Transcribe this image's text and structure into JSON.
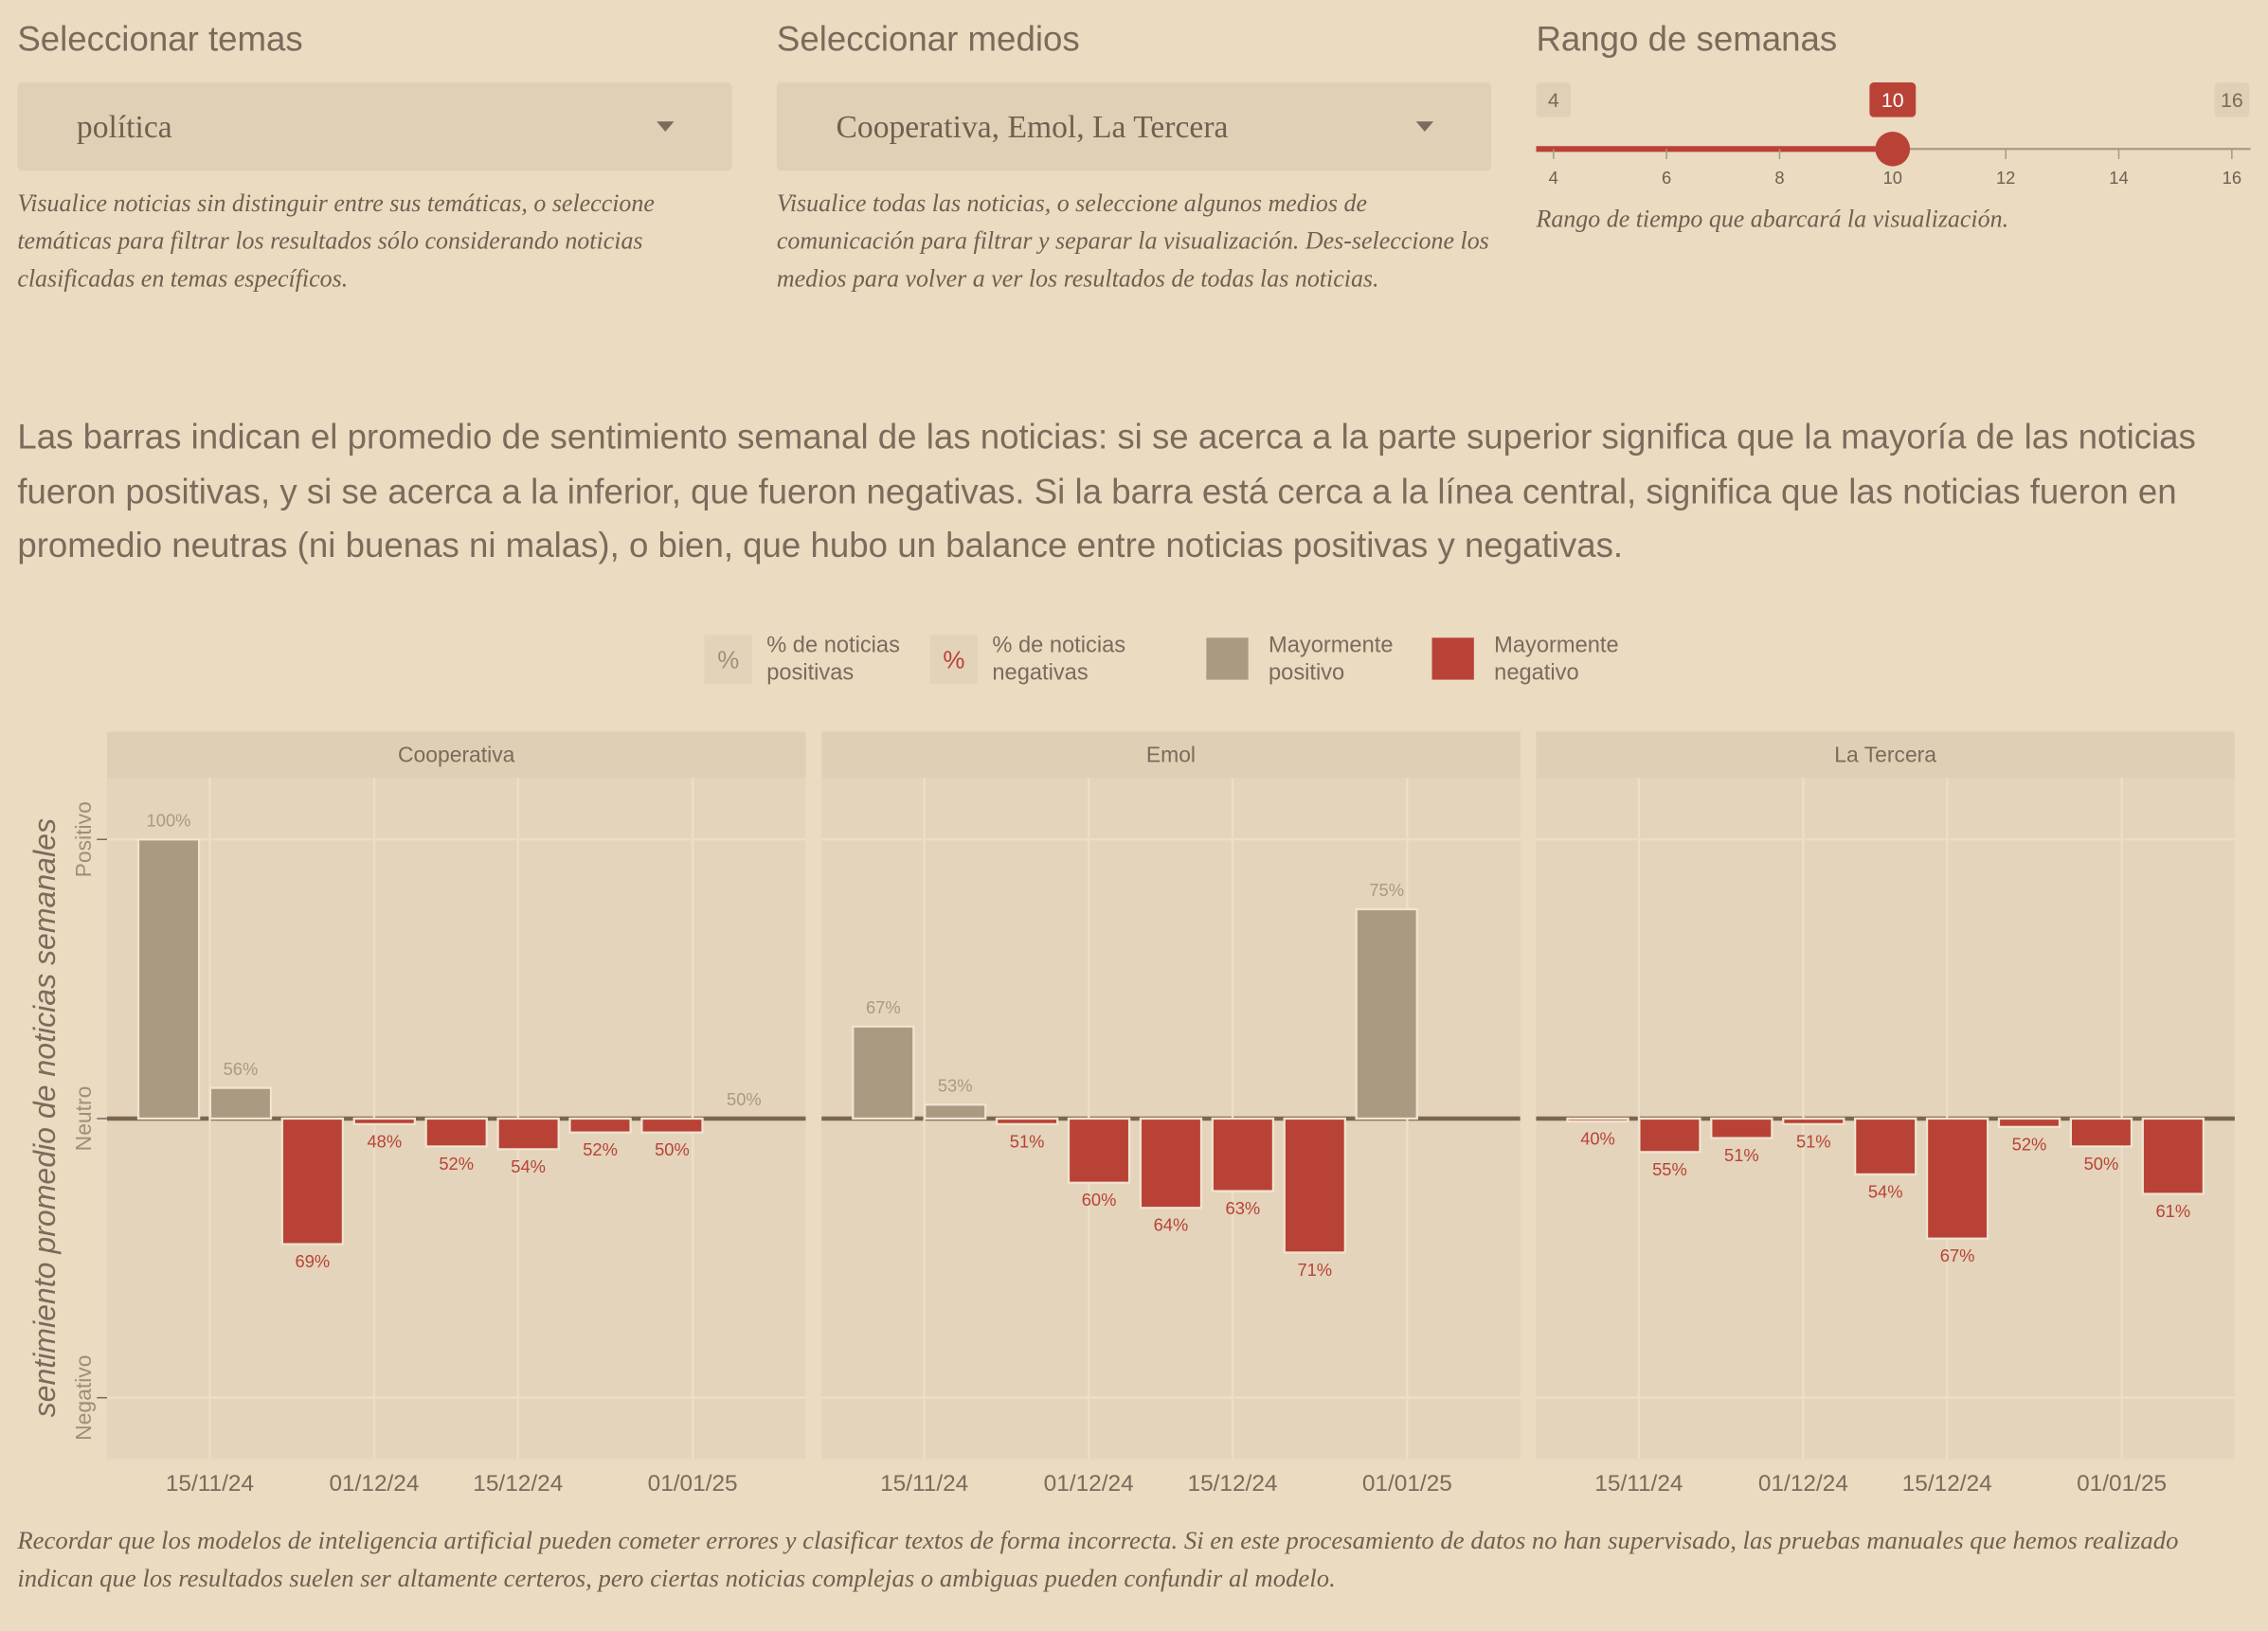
{
  "controls": [
    {
      "label": "Seleccionar temas",
      "value": "política",
      "help": "Visualice noticias sin distinguir entre sus temáticas, o seleccione temáticas para filtrar los resultados sólo considerando noticias clasificadas en temas específicos."
    },
    {
      "label": "Seleccionar medios",
      "value": "Cooperativa, Emol, La Tercera",
      "help": "Visualice todas las noticias, o seleccione algunos medios de comunicación para filtrar y separar la visualización. Des-seleccione los medios para volver a ver los resultados de todas las noticias."
    }
  ],
  "slider": {
    "label": "Rango de semanas",
    "min": 4,
    "max": 16,
    "value": 10,
    "ticks": [
      4,
      6,
      8,
      10,
      12,
      14,
      16
    ],
    "help": "Rango de tiempo que abarcará la visualización."
  },
  "description": "Las barras indican el promedio de sentimiento semanal de las noticias: si se acerca a la parte superior significa que la mayoría de las noticias fueron positivas, y si se acerca a la inferior, que fueron negativas. Si la barra está cerca a la línea central, significa que las noticias fueron en promedio neutras (ni buenas ni malas), o bien, que hubo un balance entre noticias positivas y negativas.",
  "legend": [
    {
      "symbol": "%",
      "label": "% de noticias positivas",
      "color": "#9e8f7b"
    },
    {
      "symbol": "%",
      "label": "% de noticias negativas",
      "color": "#b94236"
    },
    {
      "label": "Mayormente positivo",
      "color": "#ab9a82"
    },
    {
      "label": "Mayormente negativo",
      "color": "#b94236"
    }
  ],
  "chart_data": [
    {
      "type": "bar",
      "title": "Cooperativa",
      "ylabel": "sentimiento promedio de noticias semanales",
      "x": [
        "2024-11-11",
        "2024-11-18",
        "2024-11-25",
        "2024-12-02",
        "2024-12-09",
        "2024-12-16",
        "2024-12-23",
        "2024-12-30",
        "2025-01-06"
      ],
      "values": [
        1.0,
        0.11,
        -0.45,
        -0.02,
        -0.1,
        -0.11,
        -0.05,
        -0.05,
        0
      ],
      "percent_labels": [
        "100%",
        "56%",
        "69%",
        "48%",
        "52%",
        "54%",
        "52%",
        "50%",
        "50%"
      ],
      "colors": [
        "#ab9a82",
        "#ab9a82",
        "#b94236",
        "#b94236",
        "#b94236",
        "#b94236",
        "#b94236",
        "#b94236",
        "#ab9a82"
      ],
      "xlim": [
        "2024-11-05",
        "2025-01-12"
      ],
      "ylim": [
        -1.22,
        1.22
      ],
      "xticks": [
        {
          "value": "2024-11-15",
          "label": "15/11/24"
        },
        {
          "value": "2024-12-01",
          "label": "01/12/24"
        },
        {
          "value": "2024-12-15",
          "label": "15/12/24"
        },
        {
          "value": "2025-01-01",
          "label": "01/01/25"
        }
      ],
      "yticks": [
        {
          "value": -1,
          "label": "Negativo"
        },
        {
          "value": 0,
          "label": "Neutro"
        },
        {
          "value": 1,
          "label": "Positivo"
        }
      ],
      "grid": true
    },
    {
      "type": "bar",
      "title": "Emol",
      "x": [
        "2024-11-11",
        "2024-11-18",
        "2024-11-25",
        "2024-12-02",
        "2024-12-09",
        "2024-12-16",
        "2024-12-23",
        "2024-12-30"
      ],
      "values": [
        0.33,
        0.05,
        -0.02,
        -0.23,
        -0.32,
        -0.26,
        -0.48,
        0.75
      ],
      "percent_labels": [
        "67%",
        "53%",
        "51%",
        "60%",
        "64%",
        "63%",
        "71%",
        "75%"
      ],
      "colors": [
        "#ab9a82",
        "#ab9a82",
        "#b94236",
        "#b94236",
        "#b94236",
        "#b94236",
        "#b94236",
        "#ab9a82"
      ],
      "xlim": [
        "2024-11-05",
        "2025-01-12"
      ],
      "ylim": [
        -1.22,
        1.22
      ],
      "xticks": [
        {
          "value": "2024-11-15",
          "label": "15/11/24"
        },
        {
          "value": "2024-12-01",
          "label": "01/12/24"
        },
        {
          "value": "2024-12-15",
          "label": "15/12/24"
        },
        {
          "value": "2025-01-01",
          "label": "01/01/25"
        }
      ],
      "yticks": [
        {
          "value": -1,
          "label": "Negativo"
        },
        {
          "value": 0,
          "label": "Neutro"
        },
        {
          "value": 1,
          "label": "Positivo"
        }
      ],
      "grid": true
    },
    {
      "type": "bar",
      "title": "La Tercera",
      "x": [
        "2024-11-11",
        "2024-11-18",
        "2024-11-25",
        "2024-12-02",
        "2024-12-09",
        "2024-12-16",
        "2024-12-23",
        "2024-12-30",
        "2025-01-06"
      ],
      "values": [
        -0.01,
        -0.12,
        -0.07,
        -0.02,
        -0.2,
        -0.43,
        -0.03,
        -0.1,
        -0.27
      ],
      "percent_labels": [
        "40%",
        "55%",
        "51%",
        "51%",
        "54%",
        "67%",
        "52%",
        "50%",
        "61%"
      ],
      "colors": [
        "#b94236",
        "#b94236",
        "#b94236",
        "#b94236",
        "#b94236",
        "#b94236",
        "#b94236",
        "#b94236",
        "#b94236"
      ],
      "xlim": [
        "2024-11-05",
        "2025-01-12"
      ],
      "ylim": [
        -1.22,
        1.22
      ],
      "xticks": [
        {
          "value": "2024-11-15",
          "label": "15/11/24"
        },
        {
          "value": "2024-12-01",
          "label": "01/12/24"
        },
        {
          "value": "2024-12-15",
          "label": "15/12/24"
        },
        {
          "value": "2025-01-01",
          "label": "01/01/25"
        }
      ],
      "yticks": [
        {
          "value": -1,
          "label": "Negativo"
        },
        {
          "value": 0,
          "label": "Neutro"
        },
        {
          "value": 1,
          "label": "Positivo"
        }
      ],
      "grid": true
    }
  ],
  "footnote": "Recordar que los modelos de inteligencia artificial pueden cometer errores y clasificar textos de forma incorrecta. Si en este procesamiento de datos no han supervisado, las pruebas manuales que hemos realizado indican que los resultados suelen ser altamente certeros, pero ciertas noticias complejas o ambiguas pueden confundir al modelo."
}
